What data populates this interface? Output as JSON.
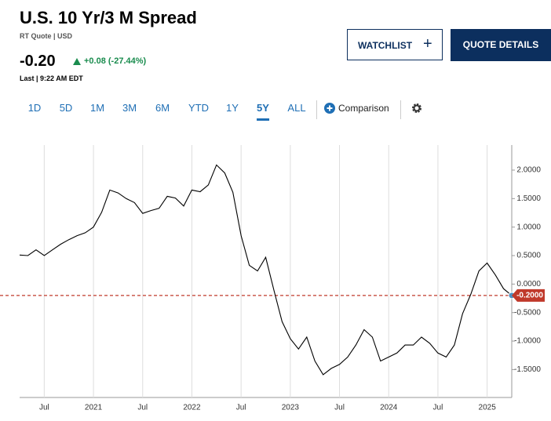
{
  "header": {
    "title": "U.S. 10 Yr/3 M Spread",
    "subtitle": "RT Quote | USD",
    "price": "-0.20",
    "change": "+0.08 (-27.44%)",
    "last_time": "Last | 9:22 AM EDT"
  },
  "buttons": {
    "watchlist": "WATCHLIST",
    "watchlist_icon": "+",
    "quote_details": "QUOTE DETAILS"
  },
  "tabs": {
    "ranges": [
      "1D",
      "5D",
      "1M",
      "3M",
      "6M",
      "YTD",
      "1Y",
      "5Y",
      "ALL"
    ],
    "active": "5Y",
    "comparison": "Comparison"
  },
  "chart_data": {
    "type": "line",
    "color": "#000000",
    "grid": "x",
    "y_axis_side": "right",
    "x": [
      "2020-04",
      "2020-05",
      "2020-06",
      "2020-07",
      "2020-08",
      "2020-09",
      "2020-10",
      "2020-11",
      "2020-12",
      "2021-01",
      "2021-02",
      "2021-03",
      "2021-04",
      "2021-05",
      "2021-06",
      "2021-07",
      "2021-08",
      "2021-09",
      "2021-10",
      "2021-11",
      "2021-12",
      "2022-01",
      "2022-02",
      "2022-03",
      "2022-04",
      "2022-05",
      "2022-06",
      "2022-07",
      "2022-08",
      "2022-09",
      "2022-10",
      "2022-11",
      "2022-12",
      "2023-01",
      "2023-02",
      "2023-03",
      "2023-04",
      "2023-05",
      "2023-06",
      "2023-07",
      "2023-08",
      "2023-09",
      "2023-10",
      "2023-11",
      "2023-12",
      "2024-01",
      "2024-02",
      "2024-03",
      "2024-04",
      "2024-05",
      "2024-06",
      "2024-07",
      "2024-08",
      "2024-09",
      "2024-10",
      "2024-11",
      "2024-12",
      "2025-01",
      "2025-02",
      "2025-03",
      "2025-04"
    ],
    "values": [
      0.51,
      0.5,
      0.6,
      0.5,
      0.6,
      0.7,
      0.78,
      0.85,
      0.9,
      1.0,
      1.26,
      1.65,
      1.6,
      1.5,
      1.43,
      1.24,
      1.29,
      1.33,
      1.54,
      1.51,
      1.37,
      1.65,
      1.62,
      1.74,
      2.09,
      1.95,
      1.61,
      0.85,
      0.33,
      0.23,
      0.47,
      -0.11,
      -0.66,
      -0.96,
      -1.14,
      -0.93,
      -1.35,
      -1.59,
      -1.48,
      -1.41,
      -1.28,
      -1.07,
      -0.8,
      -0.93,
      -1.35,
      -1.28,
      -1.21,
      -1.07,
      -1.07,
      -0.93,
      -1.04,
      -1.21,
      -1.28,
      -1.07,
      -0.52,
      -0.18,
      0.23,
      0.37,
      0.16,
      -0.08,
      -0.2
    ],
    "xlim": [
      "2020-04",
      "2025-04"
    ],
    "xticks": [
      {
        "value": "2020-07",
        "label": "Jul"
      },
      {
        "value": "2021-01",
        "label": "2021"
      },
      {
        "value": "2021-07",
        "label": "Jul"
      },
      {
        "value": "2022-01",
        "label": "2022"
      },
      {
        "value": "2022-07",
        "label": "Jul"
      },
      {
        "value": "2023-01",
        "label": "2023"
      },
      {
        "value": "2023-07",
        "label": "Jul"
      },
      {
        "value": "2024-01",
        "label": "2024"
      },
      {
        "value": "2024-07",
        "label": "Jul"
      },
      {
        "value": "2025-01",
        "label": "2025"
      }
    ],
    "ylim": [
      -1.99,
      2.44
    ],
    "yticks": [
      {
        "value": 2,
        "label": "2.0000"
      },
      {
        "value": 1.5,
        "label": "1.5000"
      },
      {
        "value": 1,
        "label": "1.0000"
      },
      {
        "value": 0.5,
        "label": "0.5000"
      },
      {
        "value": 0,
        "label": "0.0000"
      },
      {
        "value": -0.5,
        "label": "-0.5000"
      },
      {
        "value": -1,
        "label": "-1.0000"
      },
      {
        "value": -1.5,
        "label": "-1.5000"
      }
    ],
    "last_marker": {
      "value": -0.2,
      "label": "-0.2000",
      "color": "#c0392b"
    }
  }
}
